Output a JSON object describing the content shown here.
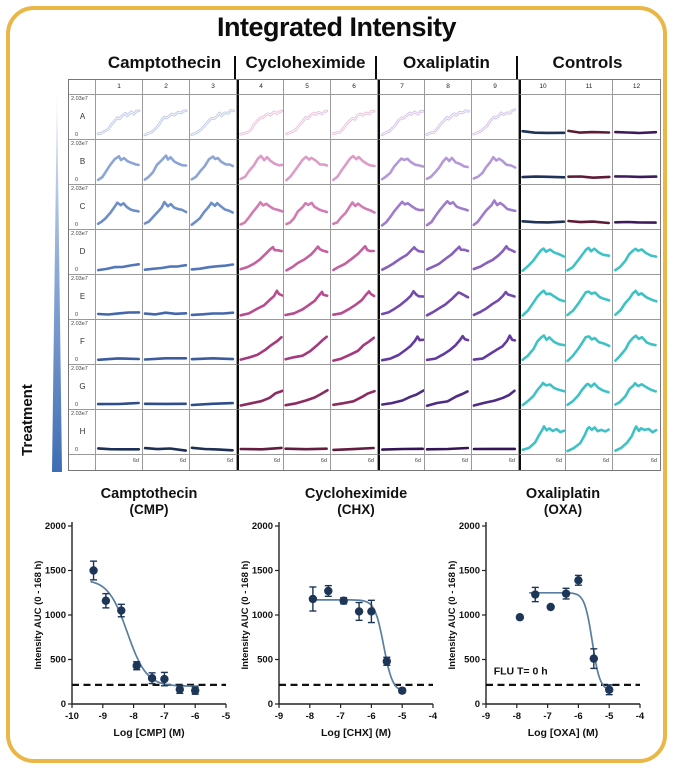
{
  "frame": {
    "border_color": "#EAB646",
    "background": "#ffffff"
  },
  "title": "Integrated Intensity",
  "treatment_label": "Treatment",
  "plate": {
    "column_numbers": [
      "1",
      "2",
      "3",
      "4",
      "5",
      "6",
      "7",
      "8",
      "9",
      "10",
      "11",
      "12"
    ],
    "row_labels": [
      "A",
      "B",
      "C",
      "D",
      "E",
      "F",
      "G",
      "H"
    ],
    "cell_y_max_label": "2.03e7",
    "cell_y_min_label": "0",
    "cell_x_end_label": "6d",
    "groups": [
      {
        "label": "Camptothecin",
        "row_colors": [
          "#B6C3E3",
          "#8CA5D6",
          "#6E8EC9",
          "#5276B9",
          "#4467AC",
          "#3A5B9E",
          "#2E4C8B",
          "#1D2F55"
        ],
        "row_shapes": [
          "rise_high",
          "peak_fall_hi",
          "peak_fall",
          "rise_low",
          "flat_low1",
          "flat_low2",
          "flat_low2",
          "flat_decline"
        ]
      },
      {
        "label": "Cycloheximide",
        "row_colors": [
          "#E5BAD6",
          "#DD9CC7",
          "#D27DB2",
          "#C560A0",
          "#B84B90",
          "#A6387E",
          "#8C2A62",
          "#611C40"
        ],
        "row_shapes": [
          "rise_high",
          "peak_fall_hi",
          "peak_fall",
          "peak_late",
          "peak_very_late",
          "rise_steady",
          "rise_slow",
          "flat_low2"
        ]
      },
      {
        "label": "Oxaliplatin",
        "row_colors": [
          "#CDB9E5",
          "#B499D9",
          "#9E7CCB",
          "#8660BC",
          "#7349AE",
          "#633AA0",
          "#502B83",
          "#351356"
        ],
        "row_shapes": [
          "rise_high",
          "peak_fall",
          "peak_fall_hi",
          "peak_late",
          "peak_late",
          "peak_very_late",
          "rise_slow",
          "flat_low2"
        ]
      },
      {
        "label": "Controls",
        "flat_colors": [
          "#1E3355",
          "#5F1B35",
          "#3F1A5A"
        ],
        "teal": "#3EC2C6",
        "row_shapes": [
          "flat_ctrl",
          "flat_ctrl",
          "flat_ctrl",
          "teal_peak",
          "teal_peak_hi",
          "teal_peak_hi",
          "teal_peak",
          "teal_rise_wig"
        ]
      }
    ],
    "shape_lib": {
      "rise_high": [
        [
          0,
          0.07
        ],
        [
          0.08,
          0.09
        ],
        [
          0.16,
          0.13
        ],
        [
          0.24,
          0.2
        ],
        [
          0.32,
          0.3
        ],
        [
          0.4,
          0.42
        ],
        [
          0.48,
          0.5
        ],
        [
          0.53,
          0.47
        ],
        [
          0.6,
          0.55
        ],
        [
          0.67,
          0.6
        ],
        [
          0.72,
          0.56
        ],
        [
          0.8,
          0.63
        ],
        [
          0.88,
          0.6
        ],
        [
          0.94,
          0.66
        ],
        [
          1,
          0.68
        ]
      ],
      "peak_fall": [
        [
          0,
          0.07
        ],
        [
          0.1,
          0.13
        ],
        [
          0.2,
          0.24
        ],
        [
          0.3,
          0.38
        ],
        [
          0.4,
          0.52
        ],
        [
          0.48,
          0.62
        ],
        [
          0.55,
          0.55
        ],
        [
          0.62,
          0.6
        ],
        [
          0.7,
          0.52
        ],
        [
          0.8,
          0.46
        ],
        [
          0.9,
          0.42
        ],
        [
          1,
          0.38
        ]
      ],
      "peak_fall_hi": [
        [
          0,
          0.06
        ],
        [
          0.1,
          0.14
        ],
        [
          0.2,
          0.27
        ],
        [
          0.3,
          0.42
        ],
        [
          0.42,
          0.58
        ],
        [
          0.5,
          0.66
        ],
        [
          0.56,
          0.58
        ],
        [
          0.63,
          0.63
        ],
        [
          0.72,
          0.54
        ],
        [
          0.82,
          0.47
        ],
        [
          0.92,
          0.44
        ],
        [
          1,
          0.42
        ]
      ],
      "rise_low": [
        [
          0,
          0.06
        ],
        [
          0.2,
          0.08
        ],
        [
          0.4,
          0.11
        ],
        [
          0.6,
          0.13
        ],
        [
          0.8,
          0.16
        ],
        [
          1,
          0.19
        ]
      ],
      "flat_low1": [
        [
          0,
          0.07
        ],
        [
          0.25,
          0.08
        ],
        [
          0.5,
          0.09
        ],
        [
          0.75,
          0.1
        ],
        [
          1,
          0.11
        ]
      ],
      "flat_low2": [
        [
          0,
          0.07
        ],
        [
          0.5,
          0.08
        ],
        [
          1,
          0.09
        ]
      ],
      "flat_decline": [
        [
          0,
          0.11
        ],
        [
          0.3,
          0.09
        ],
        [
          0.6,
          0.07
        ],
        [
          1,
          0.05
        ]
      ],
      "peak_late": [
        [
          0,
          0.06
        ],
        [
          0.15,
          0.12
        ],
        [
          0.3,
          0.22
        ],
        [
          0.45,
          0.33
        ],
        [
          0.6,
          0.45
        ],
        [
          0.7,
          0.55
        ],
        [
          0.78,
          0.65
        ],
        [
          0.83,
          0.58
        ],
        [
          0.9,
          0.55
        ],
        [
          1,
          0.52
        ]
      ],
      "peak_very_late": [
        [
          0,
          0.05
        ],
        [
          0.2,
          0.1
        ],
        [
          0.4,
          0.2
        ],
        [
          0.55,
          0.3
        ],
        [
          0.7,
          0.42
        ],
        [
          0.8,
          0.55
        ],
        [
          0.87,
          0.66
        ],
        [
          0.92,
          0.58
        ],
        [
          1,
          0.55
        ]
      ],
      "rise_steady": [
        [
          0,
          0.05
        ],
        [
          0.2,
          0.1
        ],
        [
          0.4,
          0.18
        ],
        [
          0.6,
          0.3
        ],
        [
          0.75,
          0.42
        ],
        [
          0.88,
          0.55
        ],
        [
          1,
          0.64
        ]
      ],
      "rise_slow": [
        [
          0,
          0.05
        ],
        [
          0.25,
          0.09
        ],
        [
          0.5,
          0.16
        ],
        [
          0.7,
          0.25
        ],
        [
          0.85,
          0.33
        ],
        [
          1,
          0.42
        ]
      ],
      "flat_ctrl": [
        [
          0,
          0.14
        ],
        [
          0.3,
          0.13
        ],
        [
          0.6,
          0.12
        ],
        [
          1,
          0.12
        ]
      ],
      "teal_peak": [
        [
          0,
          0.05
        ],
        [
          0.12,
          0.14
        ],
        [
          0.25,
          0.3
        ],
        [
          0.35,
          0.45
        ],
        [
          0.44,
          0.56
        ],
        [
          0.5,
          0.6
        ],
        [
          0.57,
          0.54
        ],
        [
          0.65,
          0.58
        ],
        [
          0.75,
          0.5
        ],
        [
          0.87,
          0.44
        ],
        [
          1,
          0.4
        ]
      ],
      "teal_peak_hi": [
        [
          0,
          0.04
        ],
        [
          0.12,
          0.16
        ],
        [
          0.25,
          0.34
        ],
        [
          0.35,
          0.5
        ],
        [
          0.44,
          0.62
        ],
        [
          0.5,
          0.67
        ],
        [
          0.57,
          0.58
        ],
        [
          0.65,
          0.62
        ],
        [
          0.76,
          0.52
        ],
        [
          0.88,
          0.46
        ],
        [
          1,
          0.42
        ]
      ],
      "teal_rise_wig": [
        [
          0,
          0.04
        ],
        [
          0.15,
          0.1
        ],
        [
          0.3,
          0.24
        ],
        [
          0.4,
          0.42
        ],
        [
          0.47,
          0.58
        ],
        [
          0.52,
          0.64
        ],
        [
          0.58,
          0.56
        ],
        [
          0.64,
          0.62
        ],
        [
          0.72,
          0.55
        ],
        [
          0.82,
          0.58
        ],
        [
          0.92,
          0.52
        ],
        [
          1,
          0.56
        ]
      ]
    }
  },
  "chart_style": {
    "point": "#1D3557",
    "curve": "#5A7EA0",
    "baseline": "#111111",
    "axis": "#222222"
  },
  "chart_data": [
    {
      "type": "scatter",
      "title": "Camptothecin",
      "subtitle": "(CMP)",
      "xlabel": "Log [CMP] (M)",
      "ylabel": "Intensity  AUC  (0 - 168 h)",
      "xlim": [
        -10,
        -5
      ],
      "ylim": [
        0,
        2000
      ],
      "xticks": [
        -10,
        -9,
        -8,
        -7,
        -6,
        -5
      ],
      "yticks": [
        0,
        500,
        1000,
        1500,
        2000
      ],
      "x": [
        -9.3,
        -8.9,
        -8.4,
        -7.9,
        -7.4,
        -7.0,
        -6.5,
        -6.0
      ],
      "y": [
        1500,
        1160,
        1050,
        430,
        290,
        280,
        165,
        150
      ],
      "err": [
        105,
        80,
        70,
        45,
        60,
        75,
        45,
        40
      ],
      "fit": {
        "top": 1400,
        "bottom": 200,
        "logec50": -8.2,
        "hill": 1.4,
        "range": [
          -9.4,
          -5.9
        ]
      },
      "baseline": 215,
      "annotation": null
    },
    {
      "type": "scatter",
      "title": "Cycloheximide",
      "subtitle": "(CHX)",
      "xlabel": "Log [CHX] (M)",
      "ylabel": "Intensity  AUC  (0 - 168 h)",
      "xlim": [
        -9,
        -4
      ],
      "ylim": [
        0,
        2000
      ],
      "xticks": [
        -9,
        -8,
        -7,
        -6,
        -5,
        -4
      ],
      "yticks": [
        0,
        500,
        1000,
        1500,
        2000
      ],
      "x": [
        -7.9,
        -7.4,
        -6.9,
        -6.4,
        -6.0,
        -5.5,
        -5.0
      ],
      "y": [
        1180,
        1270,
        1160,
        1040,
        1040,
        480,
        150
      ],
      "err": [
        135,
        60,
        35,
        100,
        125,
        45,
        25
      ],
      "fit": {
        "top": 1170,
        "bottom": 135,
        "logec50": -5.6,
        "hill": 3.0,
        "range": [
          -7.95,
          -4.95
        ]
      },
      "baseline": 215,
      "annotation": null
    },
    {
      "type": "scatter",
      "title": "Oxaliplatin",
      "subtitle": "(OXA)",
      "xlabel": "Log [OXA] (M)",
      "ylabel": "Intensity  AUC  (0 - 168 h)",
      "xlim": [
        -9,
        -4
      ],
      "ylim": [
        0,
        2000
      ],
      "xticks": [
        -9,
        -8,
        -7,
        -6,
        -5,
        -4
      ],
      "yticks": [
        0,
        500,
        1000,
        1500,
        2000
      ],
      "x": [
        -7.9,
        -7.4,
        -6.9,
        -6.4,
        -6.0,
        -5.5,
        -5.0
      ],
      "y": [
        975,
        1230,
        1090,
        1240,
        1390,
        510,
        160
      ],
      "err": [
        0,
        80,
        0,
        60,
        55,
        110,
        55
      ],
      "fit": {
        "top": 1250,
        "bottom": 150,
        "logec50": -5.55,
        "hill": 3.5,
        "range": [
          -7.6,
          -4.9
        ]
      },
      "baseline": 215,
      "annotation": {
        "text": "FLU T= 0 h",
        "x": -8.75,
        "y": 330
      }
    }
  ]
}
